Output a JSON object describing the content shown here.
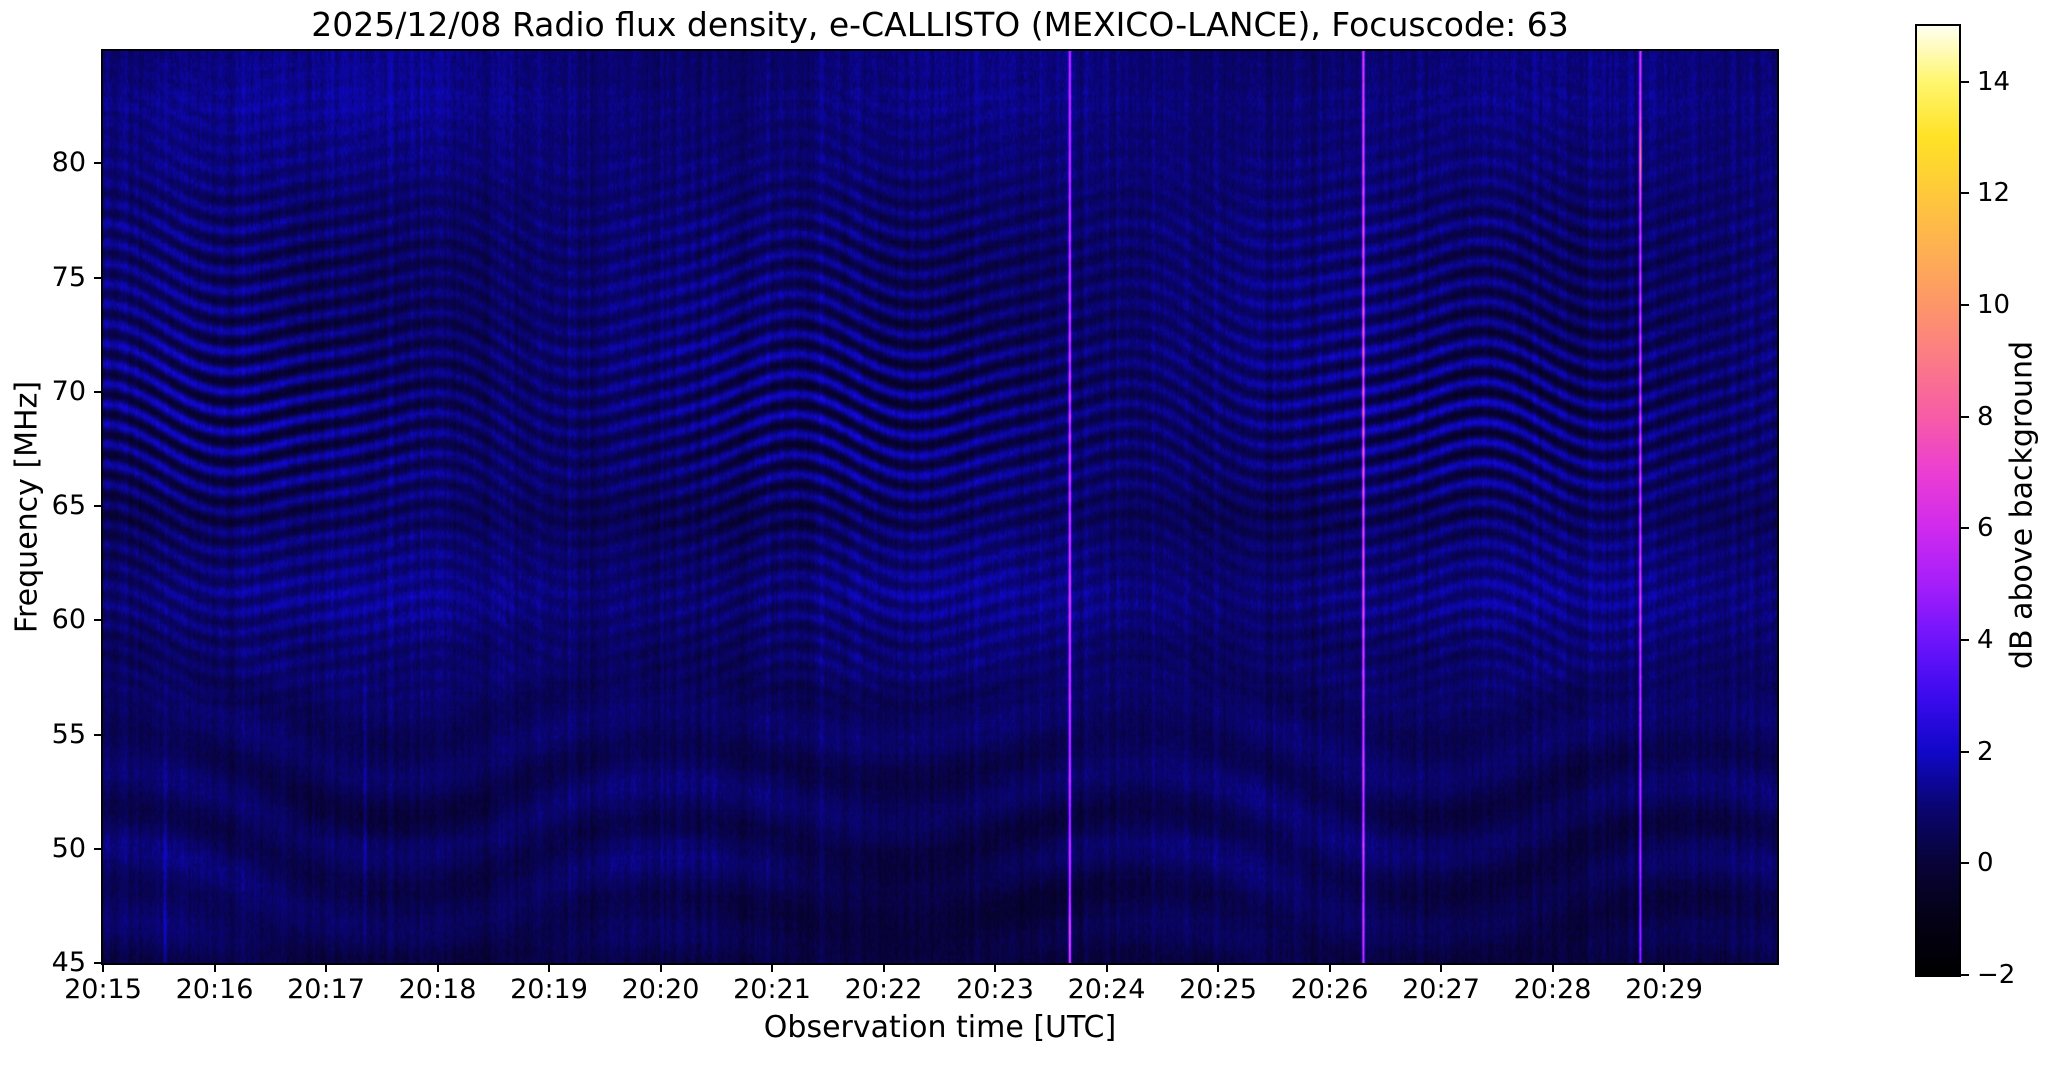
{
  "figure": {
    "title": "2025/12/08  Radio flux density, e-CALLISTO (MEXICO-LANCE), Focuscode: 63",
    "background": "#ffffff",
    "date": "2025/12/08",
    "instrument": "e-CALLISTO (MEXICO-LANCE)",
    "focuscode": "63"
  },
  "axes": {
    "xlabel": "Observation time [UTC]",
    "ylabel": "Frequency [MHz]",
    "x_ticks": [
      "20:15",
      "20:16",
      "20:17",
      "20:18",
      "20:19",
      "20:20",
      "20:21",
      "20:22",
      "20:23",
      "20:24",
      "20:25",
      "20:26",
      "20:27",
      "20:28",
      "20:29"
    ],
    "y_tick_labels": [
      "80",
      "75",
      "70",
      "65",
      "60",
      "55",
      "50",
      "45"
    ],
    "y_tick_values": [
      80,
      75,
      70,
      65,
      60,
      55,
      50,
      45
    ]
  },
  "colorbar": {
    "label": "dB above background",
    "tick_labels": [
      "14",
      "12",
      "10",
      "8",
      "6",
      "4",
      "2",
      "0",
      "−2"
    ],
    "tick_values": [
      14,
      12,
      10,
      8,
      6,
      4,
      2,
      0,
      -2
    ],
    "min": -2,
    "max": 15,
    "stops": [
      {
        "v": -2,
        "c": "#000000"
      },
      {
        "v": -1,
        "c": "#040116"
      },
      {
        "v": 0,
        "c": "#080337"
      },
      {
        "v": 1,
        "c": "#0a0570"
      },
      {
        "v": 2,
        "c": "#1008c8"
      },
      {
        "v": 3,
        "c": "#3c0aee"
      },
      {
        "v": 4,
        "c": "#6e14fc"
      },
      {
        "v": 5,
        "c": "#a51efa"
      },
      {
        "v": 6,
        "c": "#d02aee"
      },
      {
        "v": 7,
        "c": "#eb3ed2"
      },
      {
        "v": 8,
        "c": "#f75ca6"
      },
      {
        "v": 9,
        "c": "#fb7a87"
      },
      {
        "v": 10,
        "c": "#fd9669"
      },
      {
        "v": 11,
        "c": "#feb052"
      },
      {
        "v": 12,
        "c": "#fec93a"
      },
      {
        "v": 13,
        "c": "#ffe226"
      },
      {
        "v": 14,
        "c": "#fff66e"
      },
      {
        "v": 15,
        "c": "#fffff0"
      }
    ]
  },
  "chart_data": {
    "type": "heatmap",
    "title": "2025/12/08  Radio flux density, e-CALLISTO (MEXICO-LANCE), Focuscode: 63",
    "xlabel": "Observation time [UTC]",
    "ylabel": "Frequency [MHz]",
    "x_start_utc": "20:15:00",
    "x_end_utc": "20:30:00",
    "x_tick_interval_s": 60,
    "freq_range_mhz": [
      45,
      84.9
    ],
    "value_label": "dB above background",
    "value_range_db": [
      -2,
      15
    ],
    "background_level_db": 0.85,
    "speckle_noise_db": 0.5,
    "description": "Quiet-Sun dynamic spectrum: blue 0-2 dB background covered by slowly drifting wavy interference fringes, strongest between ~58 and 80 MHz; broad faint chevrons below 55 MHz; no solar radio burst.",
    "fringes": {
      "spacing_mhz": 0.88,
      "amp_db": 1.15,
      "center_mhz": 69,
      "sigma_mhz": 6,
      "drift_amp_mhz": 1.0,
      "drift_periods_min": [
        3.1,
        7.3,
        1.55
      ],
      "broad_spacing_mhz": 3.4,
      "broad_center_mhz": 51.5,
      "broad_amp_db": 0.4
    },
    "events": {
      "magenta_interference_lines_utc": [
        "20:23:40",
        "20:26:18",
        "20:28:47"
      ],
      "magenta_line_level_db": 6,
      "faint_blue_streaks_utc": [
        "20:15:33",
        "20:17:21"
      ]
    }
  }
}
